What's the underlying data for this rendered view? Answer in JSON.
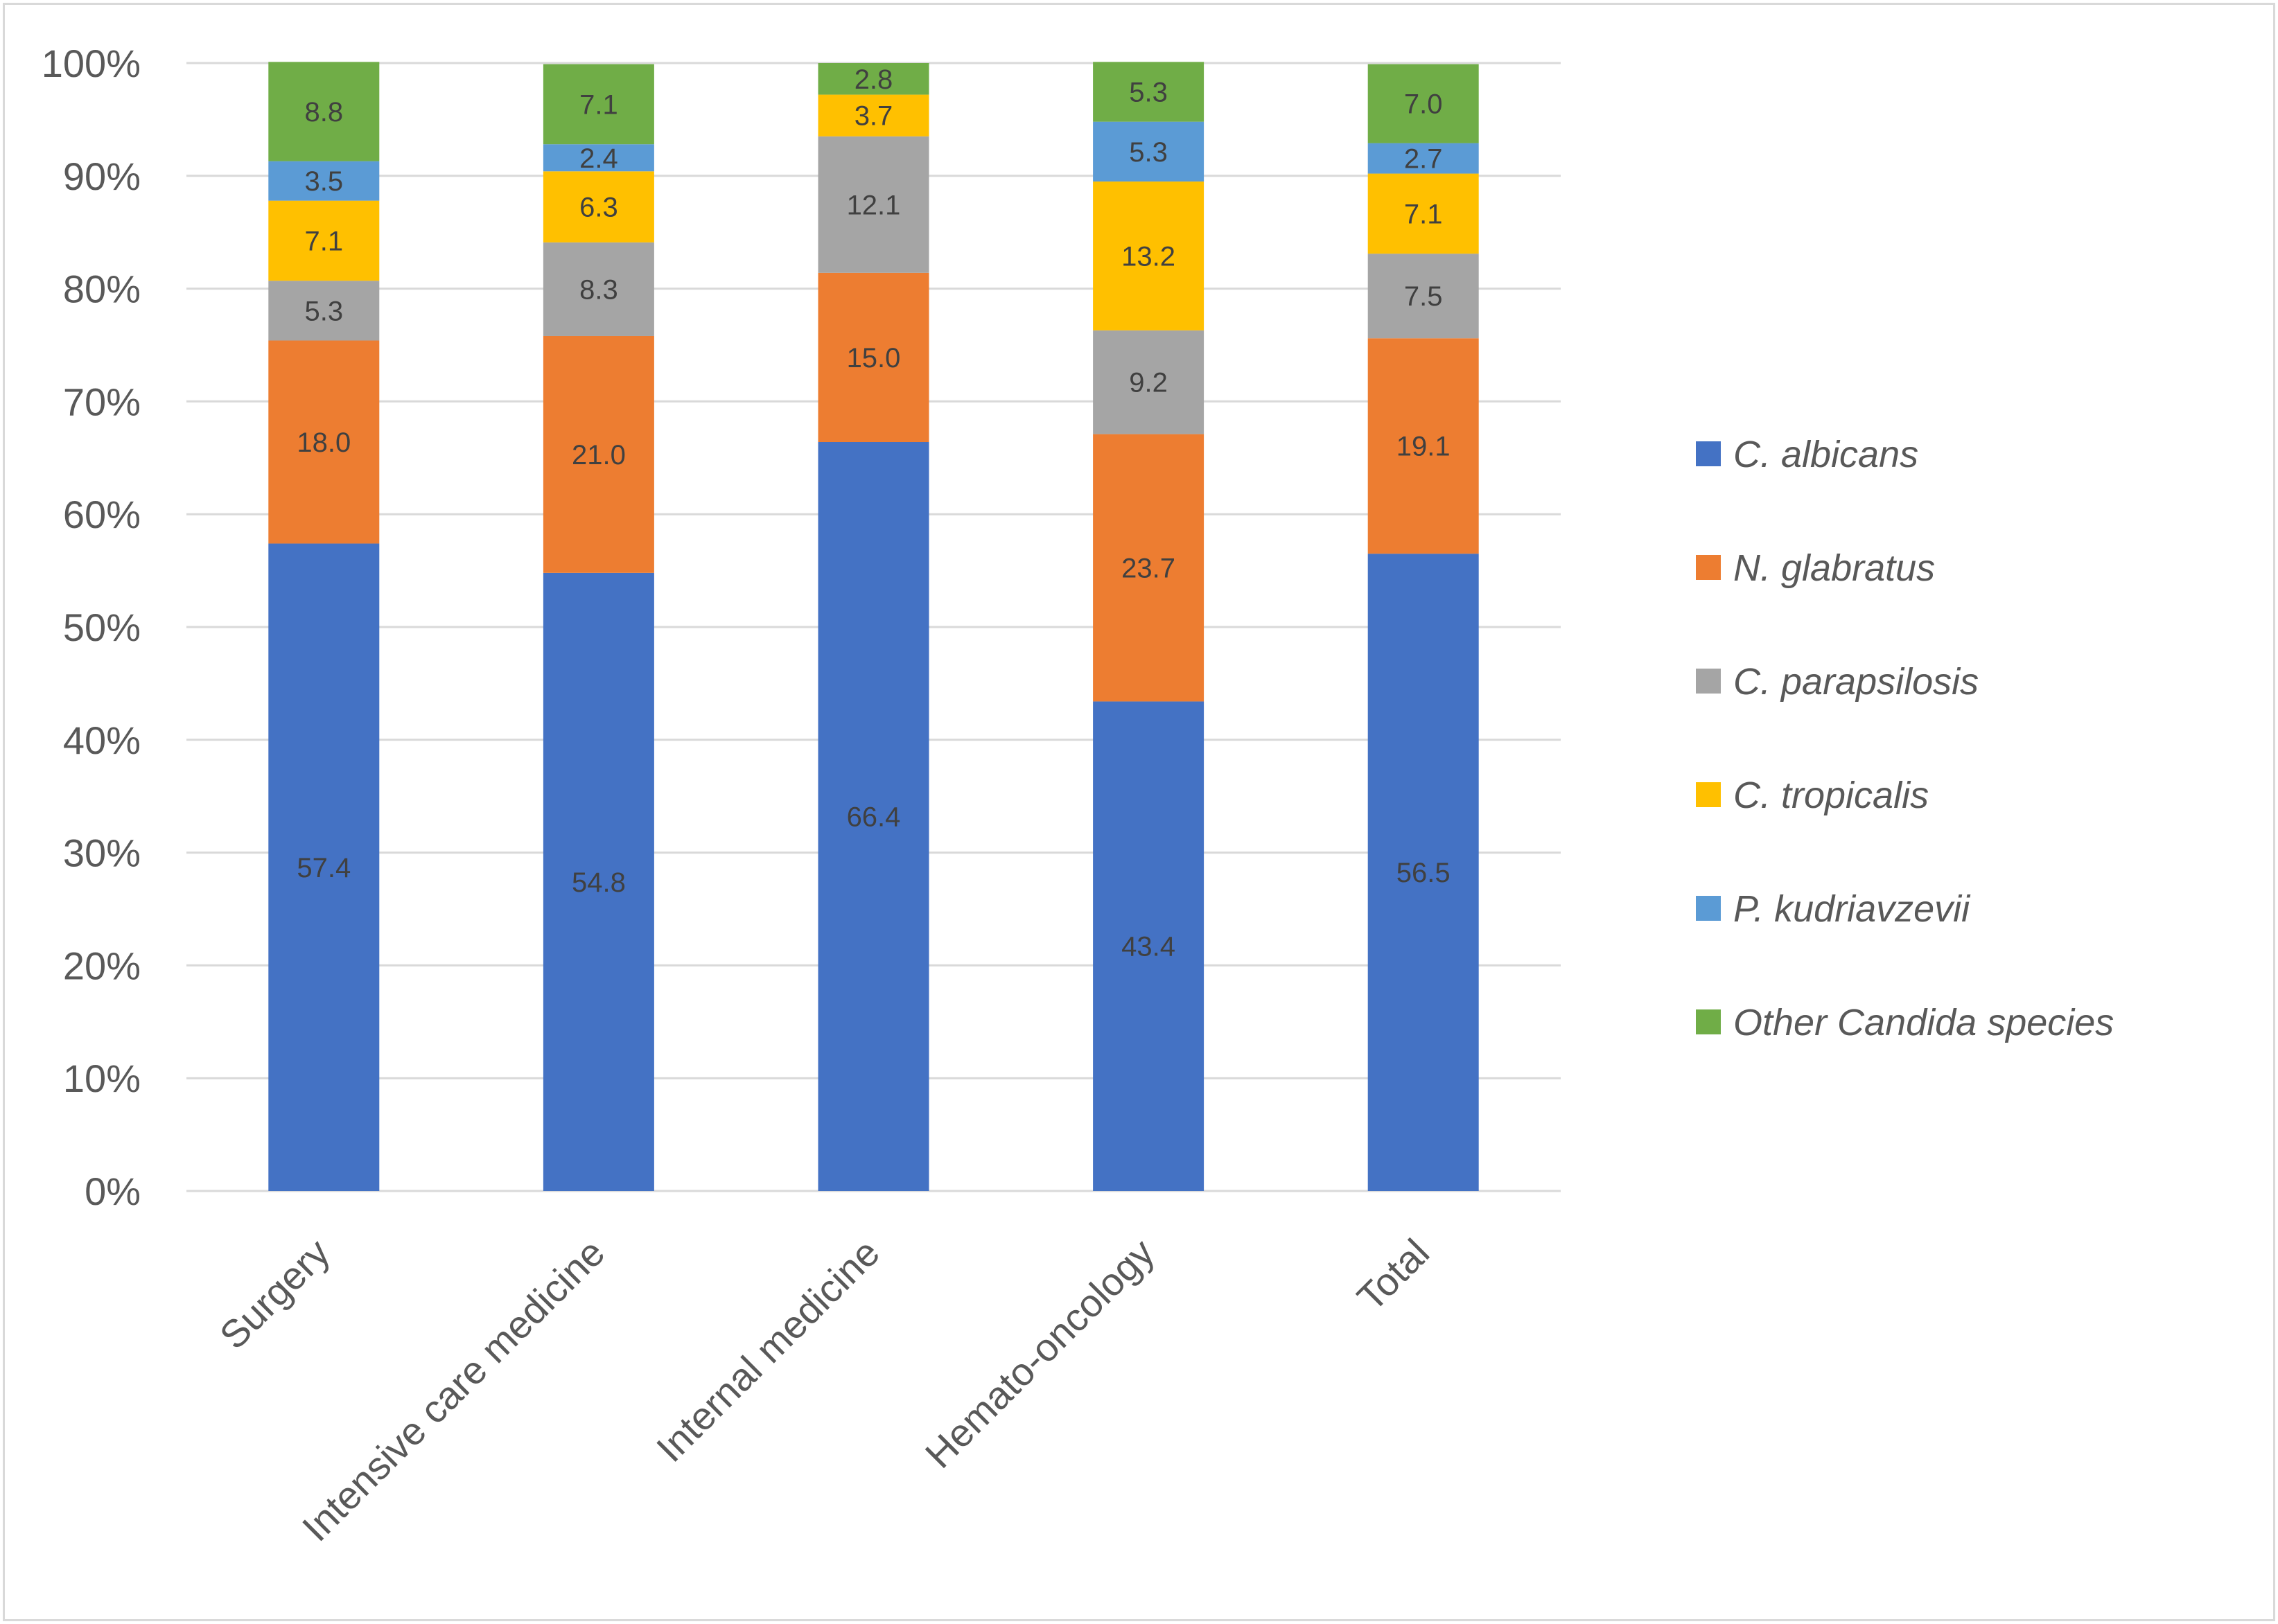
{
  "chart_data": {
    "type": "bar",
    "stacked": true,
    "percent_stacked": true,
    "categories": [
      "Surgery",
      "Intensive care medicine",
      "Internal medicine",
      "Hemato-oncology",
      "Total"
    ],
    "series": [
      {
        "name": "C. albicans",
        "color": "#4472C4",
        "values": [
          57.4,
          54.8,
          66.4,
          43.4,
          56.5
        ]
      },
      {
        "name": "N. glabratus",
        "color": "#ED7D31",
        "values": [
          18.0,
          21.0,
          15.0,
          23.7,
          19.1
        ]
      },
      {
        "name": "C. parapsilosis",
        "color": "#A5A5A5",
        "values": [
          5.3,
          8.3,
          12.1,
          9.2,
          7.5
        ]
      },
      {
        "name": "C. tropicalis",
        "color": "#FFC000",
        "values": [
          7.1,
          6.3,
          3.7,
          13.2,
          7.1
        ]
      },
      {
        "name": "P. kudriavzevii",
        "color": "#5B9BD5",
        "values": [
          3.5,
          2.4,
          0.0,
          5.3,
          2.7
        ]
      },
      {
        "name": "Other Candida species",
        "color": "#70AD47",
        "values": [
          8.8,
          7.1,
          2.8,
          5.3,
          7.0
        ]
      }
    ],
    "data_labels": [
      [
        "57.4",
        "18.0",
        "5.3",
        "7.1",
        "3.5",
        "8.8"
      ],
      [
        "54.8",
        "21.0",
        "8.3",
        "6.3",
        "2.4",
        "7.1"
      ],
      [
        "66.4",
        "15.0",
        "12.1",
        "3.7",
        "",
        "2.8"
      ],
      [
        "43.4",
        "23.7",
        "9.2",
        "13.2",
        "5.3",
        "5.3"
      ],
      [
        "56.5",
        "19.1",
        "7.5",
        "7.1",
        "2.7",
        "7.0"
      ]
    ],
    "y_ticks": [
      "0%",
      "10%",
      "20%",
      "30%",
      "40%",
      "50%",
      "60%",
      "70%",
      "80%",
      "90%",
      "100%"
    ],
    "ylim": [
      0,
      100
    ],
    "grid": true,
    "legend_position": "right",
    "title": "",
    "xlabel": "",
    "ylabel": ""
  }
}
